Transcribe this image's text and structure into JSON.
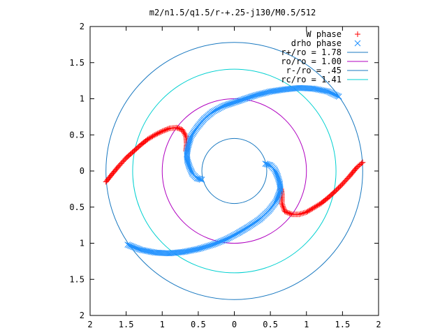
{
  "chart_data": {
    "type": "scatter",
    "title": "m2/n1.5/q1.5/r-+.25-j130/M0.5/512",
    "xlabel": "",
    "ylabel": "",
    "xlim": [
      -2,
      2
    ],
    "ylim": [
      -2,
      2
    ],
    "grid": false,
    "legend_position": "top-right",
    "x_ticks": [
      "2",
      "1.5",
      "1",
      "0.5",
      "0",
      "0.5",
      "1",
      "1.5",
      "2"
    ],
    "y_ticks": [
      "2",
      "1.5",
      "1",
      "0.5",
      "0",
      "0.5",
      "1",
      "1.5",
      "2"
    ],
    "legend": [
      {
        "label": "W phase",
        "kind": "points",
        "symbol": "+",
        "color": "#ff0000"
      },
      {
        "label": "drho phase",
        "kind": "points",
        "symbol": "x",
        "color": "#1e90ff"
      },
      {
        "label": "r+/ro = 1.78",
        "kind": "line",
        "color": "#1878c0"
      },
      {
        "label": "ro/ro = 1.00",
        "kind": "line",
        "color": "#b000c0"
      },
      {
        "label": "r-/ro = .45",
        "kind": "line",
        "color": "#1878c0"
      },
      {
        "label": "rc/ro = 1.41",
        "kind": "line",
        "color": "#00d0d0"
      }
    ],
    "circles": [
      {
        "name": "r+/ro = 1.78",
        "radius": 1.78,
        "color": "#1878c0"
      },
      {
        "name": "ro/ro = 1.00",
        "radius": 1.0,
        "color": "#b000c0"
      },
      {
        "name": "r-/ro = .45",
        "radius": 0.45,
        "color": "#1878c0"
      },
      {
        "name": "rc/ro = 1.41",
        "radius": 1.41,
        "color": "#00d0d0"
      }
    ],
    "series": [
      {
        "name": "W phase",
        "color": "#ff0000",
        "symbol": "+",
        "points": [
          [
            -1.78,
            -0.15
          ],
          [
            -1.7,
            -0.05
          ],
          [
            -1.6,
            0.07
          ],
          [
            -1.5,
            0.18
          ],
          [
            -1.4,
            0.27
          ],
          [
            -1.3,
            0.36
          ],
          [
            -1.2,
            0.44
          ],
          [
            -1.1,
            0.5
          ],
          [
            -1.0,
            0.55
          ],
          [
            -0.9,
            0.59
          ],
          [
            -0.8,
            0.6
          ],
          [
            -0.72,
            0.57
          ],
          [
            -0.67,
            0.48
          ],
          [
            -0.66,
            0.37
          ],
          [
            -0.67,
            0.28
          ],
          [
            1.78,
            0.12
          ],
          [
            1.7,
            0.05
          ],
          [
            1.6,
            -0.07
          ],
          [
            1.5,
            -0.18
          ],
          [
            1.4,
            -0.28
          ],
          [
            1.3,
            -0.37
          ],
          [
            1.2,
            -0.45
          ],
          [
            1.1,
            -0.51
          ],
          [
            1.0,
            -0.57
          ],
          [
            0.9,
            -0.6
          ],
          [
            0.8,
            -0.6
          ],
          [
            0.7,
            -0.56
          ],
          [
            0.66,
            -0.45
          ],
          [
            0.66,
            -0.32
          ],
          [
            0.65,
            -0.25
          ]
        ]
      },
      {
        "name": "drho phase",
        "color": "#1e90ff",
        "symbol": "x",
        "points": [
          [
            -0.45,
            -0.12
          ],
          [
            -0.52,
            -0.1
          ],
          [
            -0.58,
            -0.04
          ],
          [
            -0.62,
            0.05
          ],
          [
            -0.65,
            0.14
          ],
          [
            -0.66,
            0.23
          ],
          [
            -0.64,
            0.34
          ],
          [
            -0.6,
            0.48
          ],
          [
            -0.52,
            0.6
          ],
          [
            -0.42,
            0.72
          ],
          [
            -0.3,
            0.82
          ],
          [
            -0.15,
            0.9
          ],
          [
            0.0,
            0.95
          ],
          [
            0.15,
            1.0
          ],
          [
            0.3,
            1.05
          ],
          [
            0.5,
            1.1
          ],
          [
            0.7,
            1.13
          ],
          [
            0.9,
            1.15
          ],
          [
            1.1,
            1.14
          ],
          [
            1.3,
            1.1
          ],
          [
            1.45,
            1.03
          ],
          [
            0.43,
            0.1
          ],
          [
            0.5,
            0.08
          ],
          [
            0.56,
            0.02
          ],
          [
            0.6,
            -0.07
          ],
          [
            0.63,
            -0.17
          ],
          [
            0.64,
            -0.26
          ],
          [
            0.58,
            -0.42
          ],
          [
            0.48,
            -0.55
          ],
          [
            0.35,
            -0.67
          ],
          [
            0.2,
            -0.77
          ],
          [
            0.05,
            -0.86
          ],
          [
            -0.1,
            -0.94
          ],
          [
            -0.3,
            -1.02
          ],
          [
            -0.5,
            -1.08
          ],
          [
            -0.7,
            -1.12
          ],
          [
            -0.9,
            -1.14
          ],
          [
            -1.1,
            -1.13
          ],
          [
            -1.3,
            -1.09
          ],
          [
            -1.48,
            -1.02
          ]
        ]
      }
    ]
  }
}
